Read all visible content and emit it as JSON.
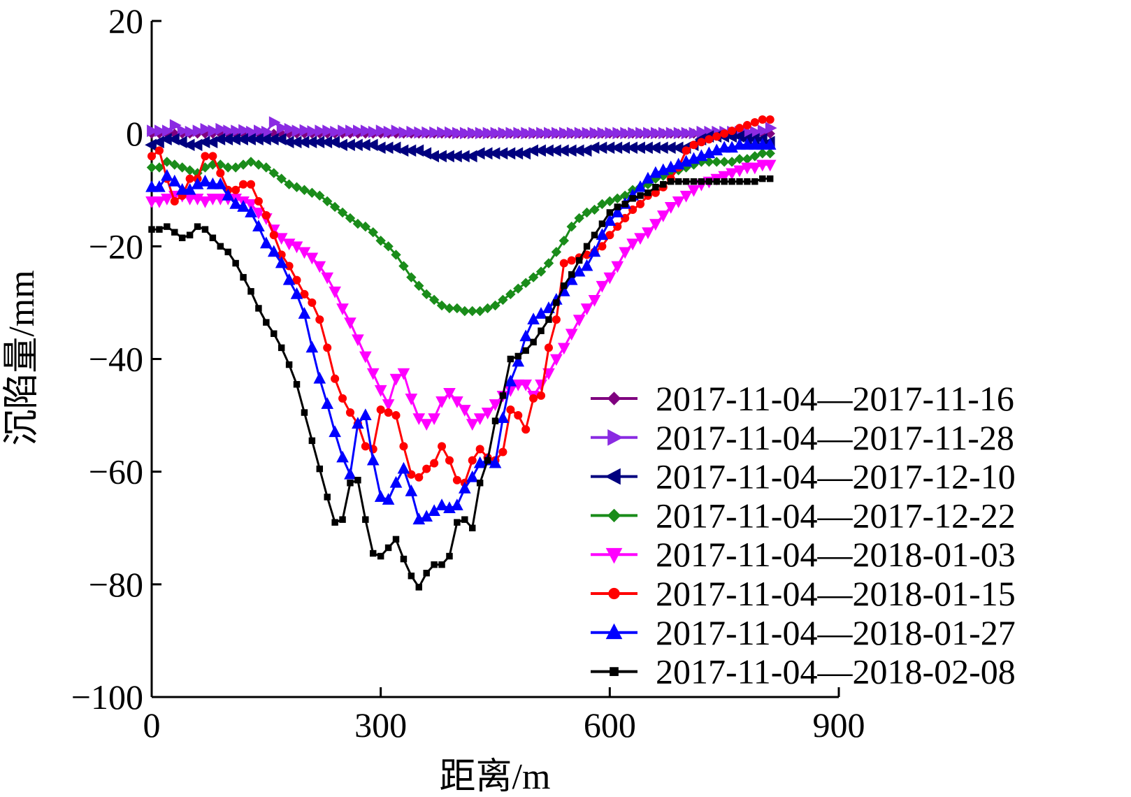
{
  "chart_data": {
    "type": "line",
    "xlabel": "距离/m",
    "ylabel": "沉陷量/mm",
    "xlim": [
      0,
      900
    ],
    "ylim": [
      -100,
      20
    ],
    "xticks": [
      0,
      300,
      600,
      900
    ],
    "yticks": [
      20,
      0,
      -20,
      -40,
      -60,
      -80,
      -100
    ],
    "xtick_labels": [
      "0",
      "300",
      "600",
      "900"
    ],
    "ytick_labels": [
      "20",
      "0",
      "−20",
      "−40",
      "−60",
      "−80",
      "−100"
    ],
    "grid": false,
    "legend_position": "right",
    "x": [
      0,
      10,
      20,
      30,
      40,
      50,
      60,
      70,
      80,
      90,
      100,
      110,
      120,
      130,
      140,
      150,
      160,
      170,
      180,
      190,
      200,
      210,
      220,
      230,
      240,
      250,
      260,
      270,
      280,
      290,
      300,
      310,
      320,
      330,
      340,
      350,
      360,
      370,
      380,
      390,
      400,
      410,
      420,
      430,
      440,
      450,
      460,
      470,
      480,
      490,
      500,
      510,
      520,
      530,
      540,
      550,
      560,
      570,
      580,
      590,
      600,
      610,
      620,
      630,
      640,
      650,
      660,
      670,
      680,
      690,
      700,
      710,
      720,
      730,
      740,
      750,
      760,
      770,
      780,
      790,
      800,
      810
    ],
    "series": [
      {
        "name": "2017-11-04—2017-11-16",
        "color": "#7f007f",
        "marker": "diamond",
        "values": [
          0,
          0,
          0,
          0,
          0,
          0,
          0,
          0,
          0,
          0,
          0,
          0,
          0,
          0,
          0,
          0,
          0,
          0,
          0,
          0,
          0,
          0,
          0,
          0,
          0,
          0,
          0,
          0,
          0,
          0,
          0,
          0,
          0,
          0,
          0,
          0,
          0,
          0,
          0,
          0,
          0,
          0,
          0,
          0,
          0,
          0,
          0,
          0,
          0,
          0,
          0,
          0,
          0,
          0,
          0,
          0,
          0,
          0,
          0,
          0,
          0,
          0,
          0,
          0,
          0,
          0,
          0,
          0,
          0,
          0,
          0,
          0,
          0,
          0,
          0,
          0,
          0,
          0,
          0,
          0,
          0,
          0
        ]
      },
      {
        "name": "2017-11-04—2017-11-28",
        "color": "#8a2be2",
        "marker": "triangle-right",
        "values": [
          0.5,
          0.5,
          0.5,
          1.5,
          0.5,
          0.3,
          0.5,
          0.8,
          0.5,
          0.8,
          0.5,
          0.5,
          0.6,
          0.3,
          0.5,
          0.3,
          2,
          1,
          0.8,
          0.5,
          0.6,
          0.4,
          0.5,
          0.5,
          0.3,
          0.5,
          0.5,
          0.5,
          0.5,
          0.3,
          0.5,
          0.3,
          0.5,
          0.2,
          0.3,
          0.2,
          0.2,
          0.2,
          0.2,
          0.2,
          0.1,
          0.1,
          0.1,
          0.1,
          0.1,
          0.1,
          0.1,
          0.1,
          0.1,
          0.1,
          0.1,
          0.1,
          0.1,
          0.1,
          0.1,
          0.1,
          0.1,
          0.1,
          0.1,
          0.1,
          0.1,
          0.1,
          0.1,
          0.1,
          0.1,
          0.1,
          0.1,
          0.1,
          0.1,
          0.1,
          0.1,
          0.1,
          0.3,
          0.3,
          0.3,
          0.3,
          0.3,
          0.3,
          0.3,
          0.3,
          0.5,
          1
        ]
      },
      {
        "name": "2017-11-04—2017-12-10",
        "color": "#00007f",
        "marker": "triangle-left",
        "values": [
          -2,
          -1.5,
          -1,
          -1,
          -1.5,
          -2,
          -2,
          -1.5,
          -1.5,
          -1,
          -1,
          -1,
          -1,
          -1,
          -1,
          -1,
          -1,
          -1,
          -1.5,
          -1.5,
          -1.5,
          -1.5,
          -1.5,
          -1.5,
          -1.5,
          -2,
          -2,
          -2,
          -2,
          -2,
          -2.5,
          -2.5,
          -2.5,
          -3,
          -3,
          -3,
          -3.5,
          -4,
          -4,
          -4,
          -4,
          -4,
          -4,
          -3.5,
          -3.5,
          -3.5,
          -3.5,
          -3.5,
          -3.5,
          -3.5,
          -3,
          -3,
          -3,
          -3,
          -3,
          -3,
          -3,
          -3,
          -2.5,
          -2.5,
          -2.5,
          -2.5,
          -2.5,
          -2.5,
          -2.5,
          -2.5,
          -2.5,
          -2.5,
          -2.5,
          -2.5,
          -2.5,
          -2,
          -1,
          -0.5,
          -0.5,
          -0.5,
          -0.5,
          -0.5,
          -1,
          -1,
          -1,
          -1.5
        ]
      },
      {
        "name": "2017-11-04—2017-12-22",
        "color": "#1a8c1a",
        "marker": "diamond",
        "values": [
          -6,
          -6,
          -5,
          -5.5,
          -6,
          -6.5,
          -7,
          -6,
          -5.5,
          -5.5,
          -6,
          -6,
          -5.5,
          -5,
          -5.5,
          -6,
          -7,
          -8,
          -9,
          -9.5,
          -10,
          -10.5,
          -11,
          -12,
          -13,
          -14,
          -15,
          -16,
          -16.5,
          -17.5,
          -19,
          -20,
          -21.5,
          -23.5,
          -25.5,
          -27,
          -28.5,
          -29.5,
          -30.5,
          -31,
          -31,
          -31.5,
          -31.5,
          -31.5,
          -31,
          -30.5,
          -29.5,
          -28.5,
          -27.5,
          -26.5,
          -25.5,
          -24.5,
          -23,
          -21,
          -19,
          -16.5,
          -15,
          -14,
          -13.5,
          -12.5,
          -12,
          -11.5,
          -11,
          -10,
          -9.5,
          -9,
          -8,
          -7.5,
          -7,
          -6.5,
          -6,
          -5.5,
          -5,
          -5,
          -5,
          -5,
          -5,
          -4.5,
          -4.5,
          -4,
          -3.5,
          -3.5
        ]
      },
      {
        "name": "2017-11-04—2018-01-03",
        "color": "#ff00ff",
        "marker": "triangle-down",
        "values": [
          -12,
          -12,
          -11.5,
          -11,
          -11,
          -11.5,
          -11.5,
          -12,
          -11.5,
          -11.5,
          -11.5,
          -11.5,
          -12,
          -12.5,
          -14,
          -15,
          -17,
          -18.5,
          -19.5,
          -20,
          -21,
          -22,
          -23.5,
          -25.5,
          -28,
          -31,
          -33.5,
          -36.5,
          -39.5,
          -42.5,
          -45.5,
          -48,
          -43.5,
          -42.5,
          -47,
          -50.5,
          -51.5,
          -50.5,
          -47.5,
          -46,
          -47.5,
          -49,
          -51.5,
          -50.5,
          -49.5,
          -48,
          -46.5,
          -45.5,
          -44.5,
          -44.5,
          -46.5,
          -44.5,
          -42.5,
          -40,
          -38,
          -35.5,
          -33,
          -31,
          -29.5,
          -27,
          -25.5,
          -23.5,
          -21,
          -19.5,
          -18.5,
          -17.5,
          -16,
          -14.5,
          -13,
          -12,
          -11,
          -10,
          -9,
          -8.5,
          -8,
          -7.5,
          -7,
          -6.5,
          -6,
          -6,
          -5.5,
          -5.5
        ]
      },
      {
        "name": "2017-11-04—2018-01-15",
        "color": "#ff0000",
        "marker": "circle",
        "values": [
          -4,
          -3,
          -8,
          -12,
          -11,
          -8,
          -8,
          -4,
          -4,
          -7,
          -10,
          -10,
          -9,
          -9,
          -12,
          -14.5,
          -18,
          -21.5,
          -23.5,
          -26,
          -28.5,
          -30,
          -33,
          -38,
          -43.5,
          -47,
          -49.5,
          -51.5,
          -55.5,
          -56,
          -49,
          -49.5,
          -50,
          -55.5,
          -60.5,
          -61,
          -59.5,
          -58.5,
          -55.5,
          -58,
          -61.5,
          -62,
          -58,
          -56,
          -57.5,
          -58,
          -56.5,
          -49,
          -50,
          -52.5,
          -47,
          -46.5,
          -38,
          -33,
          -23,
          -22.5,
          -22,
          -21.5,
          -21,
          -20,
          -18,
          -16.5,
          -15,
          -13.5,
          -12.5,
          -11,
          -10.5,
          -9.5,
          -8,
          -6,
          -3,
          -2,
          -1.5,
          -1,
          -0.5,
          0,
          0.5,
          1,
          1.5,
          2,
          2.5,
          2.5
        ]
      },
      {
        "name": "2017-11-04—2018-01-27",
        "color": "#0000ff",
        "marker": "triangle-up",
        "values": [
          -9.5,
          -9.5,
          -7.5,
          -8.5,
          -10,
          -10,
          -9,
          -8.5,
          -9,
          -9,
          -11,
          -12.5,
          -13,
          -14,
          -16.5,
          -19.5,
          -21,
          -23,
          -26,
          -28.5,
          -32,
          -38,
          -43.5,
          -48,
          -53,
          -57.5,
          -60.5,
          -51.5,
          -50,
          -58,
          -64.5,
          -65,
          -62,
          -59.5,
          -63.5,
          -68.5,
          -68,
          -67,
          -66,
          -66.5,
          -66,
          -63,
          -61,
          -58.5,
          -58,
          -58.5,
          -50.5,
          -44,
          -40.5,
          -36,
          -33,
          -32,
          -31,
          -29.5,
          -28,
          -26,
          -24.5,
          -23.5,
          -21,
          -18,
          -15.5,
          -14,
          -12.5,
          -11,
          -9.5,
          -8,
          -7,
          -6.5,
          -6,
          -5.5,
          -5,
          -4.5,
          -4,
          -3.5,
          -3,
          -2.5,
          -2.5,
          -2,
          -2,
          -2,
          -2,
          -2
        ]
      },
      {
        "name": "2017-11-04—2018-02-08",
        "color": "#000000",
        "marker": "square",
        "values": [
          -17,
          -17,
          -16.5,
          -17.5,
          -18.5,
          -18,
          -16.5,
          -17,
          -18.5,
          -20,
          -21,
          -23,
          -25.5,
          -28,
          -31,
          -33.5,
          -35.5,
          -38,
          -41,
          -44.5,
          -49.5,
          -54.5,
          -59.5,
          -64.5,
          -69,
          -68.5,
          -62,
          -61.5,
          -68.5,
          -74.5,
          -75,
          -73.5,
          -72,
          -75.5,
          -78.5,
          -80.5,
          -78,
          -76.5,
          -76.5,
          -75,
          -69,
          -68.5,
          -70,
          -62,
          -58,
          -51,
          -46.5,
          -40,
          -39.5,
          -38.5,
          -37,
          -35,
          -33,
          -30,
          -27,
          -25,
          -22.5,
          -20,
          -18,
          -16,
          -14,
          -13,
          -12.5,
          -11.5,
          -11,
          -10.5,
          -9.5,
          -9,
          -8.5,
          -8.5,
          -8.5,
          -8.5,
          -8.5,
          -8.5,
          -8.5,
          -8.5,
          -8.5,
          -8.5,
          -8.5,
          -8.5,
          -8,
          -8
        ]
      }
    ]
  }
}
